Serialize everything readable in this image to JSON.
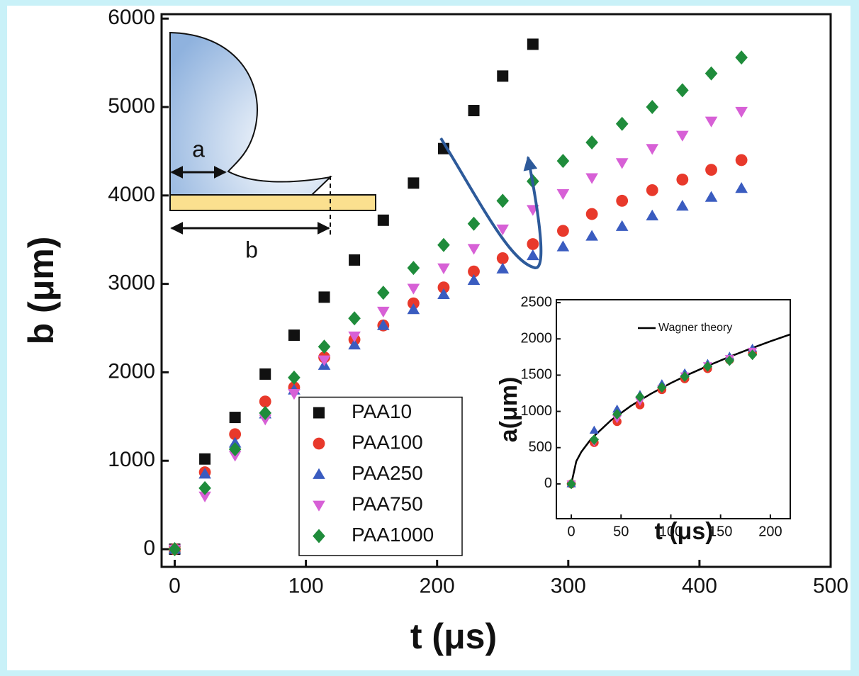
{
  "chart_data": [
    {
      "type": "scatter",
      "xlabel": "t (μs)",
      "ylabel": "b (μm)",
      "xlim": [
        -10,
        500
      ],
      "ylim": [
        -200,
        6050
      ],
      "xticks": [
        0,
        100,
        200,
        300,
        400,
        500
      ],
      "yticks": [
        0,
        1000,
        2000,
        3000,
        4000,
        5000,
        6000
      ],
      "legend": "lower center",
      "x": [
        0,
        23,
        46,
        69,
        91,
        114,
        137,
        159,
        182,
        205,
        228,
        250,
        273,
        296,
        318,
        341,
        364,
        387,
        409,
        432
      ],
      "series": [
        {
          "name": "PAA10",
          "color": "#111111",
          "marker": "square",
          "values": [
            0,
            1020,
            1490,
            1980,
            2420,
            2850,
            3270,
            3720,
            4140,
            4530,
            4960,
            5350,
            5710,
            null,
            null,
            null,
            null,
            null,
            null,
            null
          ]
        },
        {
          "name": "PAA100",
          "color": "#e8392b",
          "marker": "circle",
          "values": [
            0,
            870,
            1300,
            1670,
            1830,
            2170,
            2370,
            2530,
            2780,
            2960,
            3140,
            3290,
            3450,
            3600,
            3790,
            3940,
            4060,
            4180,
            4290,
            4400
          ]
        },
        {
          "name": "PAA250",
          "color": "#3a5cc0",
          "marker": "triangle",
          "values": [
            0,
            850,
            1200,
            1530,
            1800,
            2080,
            2310,
            2530,
            2710,
            2880,
            3040,
            3170,
            3320,
            3420,
            3540,
            3650,
            3770,
            3880,
            3980,
            4080
          ]
        },
        {
          "name": "PAA750",
          "color": "#d760d6",
          "marker": "triangle-down",
          "values": [
            0,
            600,
            1060,
            1470,
            1760,
            2140,
            2410,
            2690,
            2950,
            3180,
            3400,
            3620,
            3840,
            4020,
            4200,
            4370,
            4530,
            4680,
            4840,
            4950
          ]
        },
        {
          "name": "PAA1000",
          "color": "#1f8c3b",
          "marker": "diamond",
          "values": [
            0,
            690,
            1130,
            1540,
            1940,
            2290,
            2610,
            2900,
            3180,
            3440,
            3680,
            3940,
            4160,
            4390,
            4600,
            4810,
            5000,
            5190,
            5380,
            5560
          ]
        }
      ]
    },
    {
      "type": "scatter",
      "xlabel": "t (μs)",
      "ylabel": "a(μm)",
      "xlim": [
        -15,
        220
      ],
      "ylim": [
        -480,
        2540
      ],
      "xticks": [
        0,
        50,
        100,
        150,
        200
      ],
      "yticks": [
        0,
        500,
        1000,
        1500,
        2000,
        2500
      ],
      "legend": "upper right",
      "x": [
        0,
        23,
        46,
        69,
        91,
        114,
        137,
        159,
        182
      ],
      "series": [
        {
          "color": "#e8392b",
          "marker": "circle",
          "values": [
            0,
            570,
            860,
            1090,
            1300,
            1450,
            1590,
            1710,
            1800
          ]
        },
        {
          "color": "#3a5cc0",
          "marker": "triangle",
          "values": [
            0,
            740,
            1030,
            1230,
            1380,
            1530,
            1660,
            1760,
            1870
          ]
        },
        {
          "color": "#d760d6",
          "marker": "triangle-down",
          "values": [
            0,
            580,
            900,
            1140,
            1320,
            1490,
            1630,
            1730,
            1830
          ]
        },
        {
          "color": "#1f8c3b",
          "marker": "diamond",
          "values": [
            0,
            610,
            960,
            1200,
            1330,
            1480,
            1620,
            1700,
            1780
          ]
        }
      ],
      "line": {
        "name": "Wagner theory",
        "color": "#000000",
        "x": [
          0,
          5,
          10,
          20,
          40,
          60,
          80,
          100,
          120,
          140,
          160,
          180,
          200,
          220
        ],
        "values": [
          0,
          311,
          440,
          622,
          879,
          1077,
          1243,
          1390,
          1523,
          1645,
          1759,
          1865,
          1966,
          2062
        ]
      }
    }
  ],
  "inset_diagram": {
    "labels": [
      "a",
      "b"
    ]
  }
}
